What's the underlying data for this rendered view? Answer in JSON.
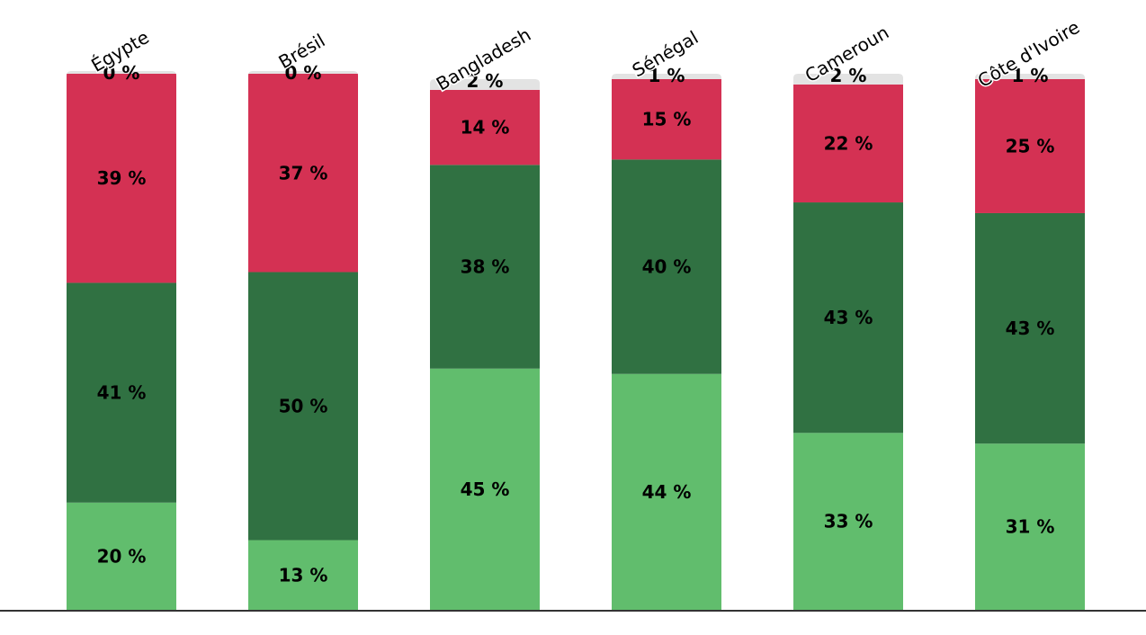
{
  "chart_data": {
    "type": "bar",
    "stacked": true,
    "orientation": "vertical",
    "categories": [
      "Égypte",
      "Brésil",
      "Bangladesh",
      "Sénégal",
      "Cameroun",
      "Côte d'Ivoire"
    ],
    "series": [
      {
        "values": [
          20,
          13,
          45,
          44,
          33,
          31
        ],
        "labels": [
          "20 %",
          "13 %",
          "45 %",
          "44 %",
          "33 %",
          "31 %"
        ],
        "color": "#61bd6d"
      },
      {
        "values": [
          41,
          50,
          38,
          40,
          43,
          43
        ],
        "labels": [
          "41 %",
          "50 %",
          "38 %",
          "40 %",
          "43 %",
          "43 %"
        ],
        "color": "#307142"
      },
      {
        "values": [
          39,
          37,
          14,
          15,
          22,
          25
        ],
        "labels": [
          "39 %",
          "37 %",
          "14 %",
          "15 %",
          "22 %",
          "25 %"
        ],
        "color": "#d43153"
      },
      {
        "values": [
          0,
          0,
          2,
          1,
          2,
          1
        ],
        "labels": [
          "0 %",
          "0 %",
          "2 %",
          "1 %",
          "2 %",
          "1 %"
        ],
        "color": "#e3e3e3"
      }
    ],
    "ylim": [
      0,
      100
    ],
    "grid": false,
    "legend": "none",
    "axis_color": "#333333"
  }
}
